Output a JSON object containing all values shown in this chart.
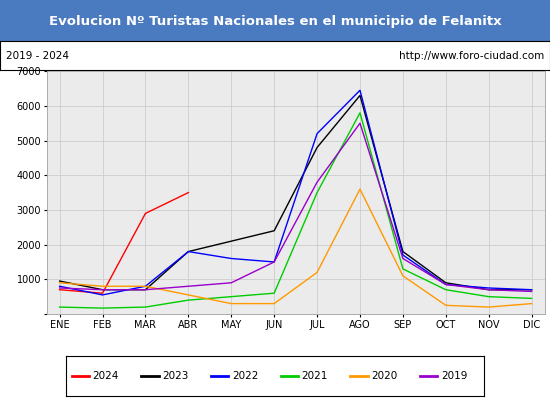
{
  "title": "Evolucion Nº Turistas Nacionales en el municipio de Felanitx",
  "subtitle_left": "2019 - 2024",
  "subtitle_right": "http://www.foro-ciudad.com",
  "months": [
    "ENE",
    "FEB",
    "MAR",
    "ABR",
    "MAY",
    "JUN",
    "JUL",
    "AGO",
    "SEP",
    "OCT",
    "NOV",
    "DIC"
  ],
  "ylim": [
    0,
    7000
  ],
  "yticks": [
    0,
    1000,
    2000,
    3000,
    4000,
    5000,
    6000,
    7000
  ],
  "series": {
    "2024": {
      "color": "#ff0000",
      "values": [
        700,
        600,
        2900,
        3500,
        null,
        null,
        null,
        null,
        null,
        null,
        null,
        null
      ]
    },
    "2023": {
      "color": "#000000",
      "values": [
        950,
        700,
        700,
        1800,
        2100,
        2400,
        4800,
        6300,
        1800,
        900,
        700,
        700
      ]
    },
    "2022": {
      "color": "#0000ff",
      "values": [
        800,
        550,
        800,
        1800,
        1600,
        1500,
        5200,
        6450,
        1700,
        850,
        750,
        700
      ]
    },
    "2021": {
      "color": "#00cc00",
      "values": [
        200,
        170,
        200,
        400,
        500,
        600,
        3500,
        5800,
        1300,
        700,
        500,
        450
      ]
    },
    "2020": {
      "color": "#ff9900",
      "values": [
        900,
        800,
        800,
        550,
        300,
        300,
        1200,
        3600,
        1100,
        250,
        200,
        300
      ]
    },
    "2019": {
      "color": "#9900cc",
      "values": [
        750,
        700,
        700,
        800,
        900,
        1500,
        3800,
        5500,
        1600,
        850,
        700,
        650
      ]
    }
  },
  "title_bg_color": "#4a7abf",
  "title_text_color": "#ffffff",
  "title_fontsize": 9.5,
  "subtitle_fontsize": 7.5,
  "axis_label_fontsize": 7,
  "legend_fontsize": 7.5,
  "grid_color": "#cccccc",
  "plot_bg_color": "#ebebeb"
}
